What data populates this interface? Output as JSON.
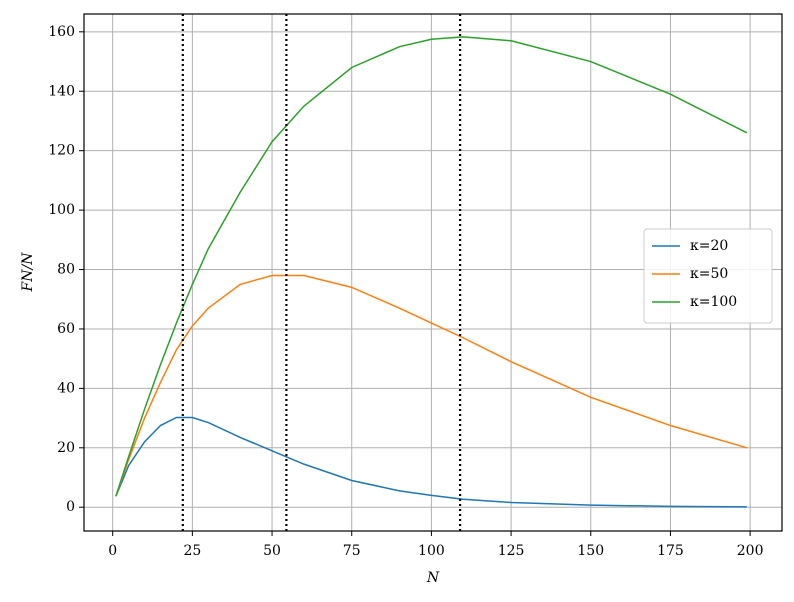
{
  "chart_data": {
    "type": "line",
    "xlabel": "N",
    "ylabel": "FN/N",
    "x": [
      1,
      5,
      10,
      15,
      20,
      25,
      30,
      40,
      50,
      60,
      75,
      90,
      100,
      110,
      125,
      150,
      175,
      199
    ],
    "series": [
      {
        "name": "κ=20",
        "color": "#1f77b4",
        "values": [
          3.7,
          14,
          22,
          27.5,
          30.2,
          30.2,
          28.5,
          23.5,
          19,
          14.5,
          9,
          5.5,
          4,
          2.7,
          1.6,
          0.7,
          0.3,
          0.1
        ]
      },
      {
        "name": "κ=50",
        "color": "#ff7f0e",
        "values": [
          3.7,
          16,
          30,
          42,
          53,
          61,
          67,
          75,
          78,
          78,
          74,
          67,
          62,
          57,
          49,
          37,
          27.5,
          20
        ]
      },
      {
        "name": "κ=100",
        "color": "#2ca02c",
        "values": [
          3.7,
          17,
          33,
          48,
          62,
          75,
          87,
          106,
          123,
          135,
          148,
          155,
          157.5,
          158.3,
          157,
          150,
          139,
          126
        ]
      }
    ],
    "vlines": [
      22,
      54.5,
      109
    ],
    "xlim": [
      -9,
      210
    ],
    "ylim": [
      -8,
      166
    ],
    "xticks": [
      0,
      25,
      50,
      75,
      100,
      125,
      150,
      175,
      200
    ],
    "yticks": [
      0,
      20,
      40,
      60,
      80,
      100,
      120,
      140,
      160
    ],
    "grid": true,
    "legend": "right"
  }
}
